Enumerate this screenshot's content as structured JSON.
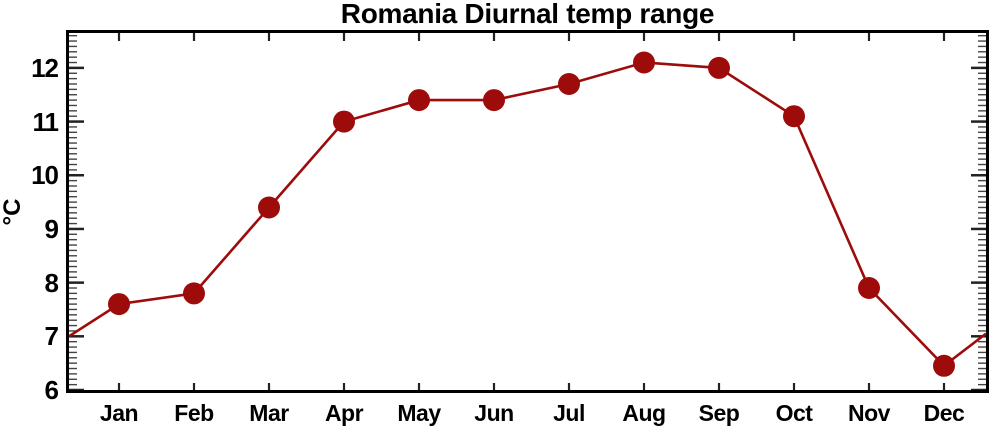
{
  "chart_data": {
    "type": "line",
    "title": "Romania Diurnal temp range",
    "ylabel": "°C",
    "xlabel": "",
    "categories": [
      "Jan",
      "Feb",
      "Mar",
      "Apr",
      "May",
      "Jun",
      "Jul",
      "Aug",
      "Sep",
      "Oct",
      "Nov",
      "Dec"
    ],
    "values": [
      7.6,
      7.8,
      9.4,
      11.0,
      11.4,
      11.4,
      11.7,
      12.1,
      12.0,
      11.1,
      7.9,
      6.45
    ],
    "edge_points": {
      "left_value": 7.0,
      "right_value": 7.05
    },
    "ylim": [
      6.0,
      12.65
    ],
    "yticks": [
      6,
      7,
      8,
      9,
      10,
      11,
      12
    ],
    "ytick_minor_step": 0.1,
    "grid": false,
    "legend": null,
    "line_color": "#9E0B0B",
    "marker": "circle",
    "marker_color": "#9E0B0B",
    "marker_size_px": 22,
    "axis_color": "#000000",
    "tick_color": "#222222",
    "minor_tick_color": "#444444",
    "background_color": "#FFFFFF"
  }
}
